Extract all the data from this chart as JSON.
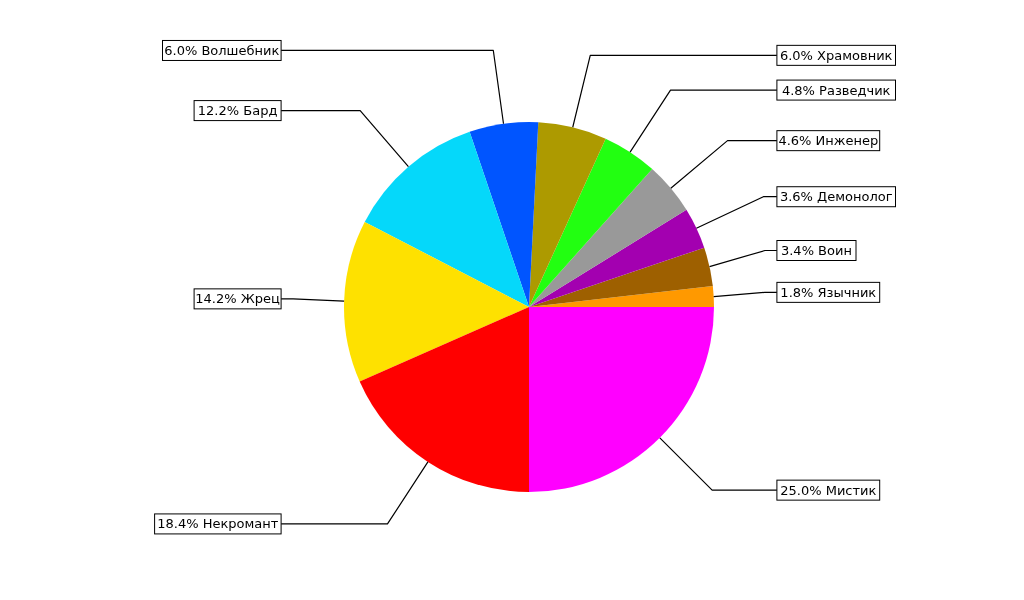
{
  "chart_data": {
    "type": "pie",
    "categories": [
      "Язычник",
      "Воин",
      "Демонолог",
      "Инженер",
      "Разведчик",
      "Храмовник",
      "Волшебник",
      "Бард",
      "Жрец",
      "Некромант",
      "Мистик"
    ],
    "values": [
      1.8,
      3.4,
      3.6,
      4.6,
      4.8,
      6.0,
      6.0,
      12.2,
      14.2,
      18.4,
      25.0
    ],
    "value_labels": [
      "1.8%",
      "3.4%",
      "3.6%",
      "4.6%",
      "4.8%",
      "6.0%",
      "6.0%",
      "12.2%",
      "14.2%",
      "18.4%",
      "25.0%"
    ],
    "colors": [
      "#ff9900",
      "#9e6000",
      "#a300b0",
      "#999999",
      "#22ff11",
      "#ad9a00",
      "#0055ff",
      "#05d8fa",
      "#fee100",
      "#ff0000",
      "#ff00ff"
    ],
    "legend": false
  }
}
